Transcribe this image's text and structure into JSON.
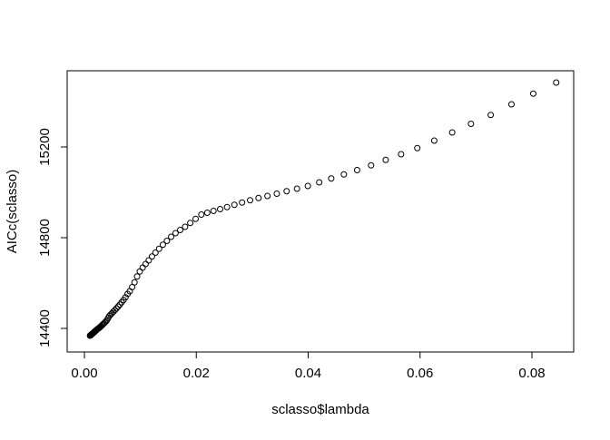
{
  "chart_data": {
    "type": "scatter",
    "x_label": "sclasso$lambda",
    "y_label": "AICc(sclasso)",
    "color": "#000000",
    "x": [
      0.001,
      0.00105,
      0.0011,
      0.00116,
      0.00122,
      0.00128,
      0.00135,
      0.00142,
      0.00149,
      0.00157,
      0.00165,
      0.00173,
      0.00182,
      0.00191,
      0.00201,
      0.00211,
      0.00222,
      0.00234,
      0.00246,
      0.00258,
      0.00271,
      0.00285,
      0.003,
      0.00315,
      0.00331,
      0.00348,
      0.00366,
      0.00385,
      0.00404,
      0.00425,
      0.00446,
      0.00469,
      0.00493,
      0.00518,
      0.00545,
      0.00573,
      0.00602,
      0.00633,
      0.00665,
      0.00699,
      0.00735,
      0.00772,
      0.00811,
      0.00853,
      0.00896,
      0.00942,
      0.0099,
      0.01041,
      0.01094,
      0.0115,
      0.01208,
      0.0127,
      0.01335,
      0.01403,
      0.01475,
      0.0155,
      0.01629,
      0.01712,
      0.018,
      0.01892,
      0.01988,
      0.0209,
      0.02196,
      0.02308,
      0.02426,
      0.0255,
      0.02681,
      0.02818,
      0.02962,
      0.03113,
      0.03272,
      0.03439,
      0.03615,
      0.038,
      0.03994,
      0.04198,
      0.04412,
      0.04638,
      0.04875,
      0.05124,
      0.05386,
      0.05661,
      0.0595,
      0.06254,
      0.06574,
      0.0691,
      0.07263,
      0.07634,
      0.08024,
      0.08434
    ],
    "values": [
      14368,
      14369,
      14370,
      14371,
      14372,
      14374,
      14375,
      14377,
      14378,
      14380,
      14381,
      14383,
      14385,
      14387,
      14390,
      14392,
      14394,
      14397,
      14399,
      14401,
      14404,
      14407,
      14410,
      14414,
      14418,
      14422,
      14426,
      14431,
      14437,
      14446,
      14455,
      14461,
      14467,
      14474,
      14481,
      14488,
      14496,
      14505,
      14515,
      14525,
      14537,
      14552,
      14564,
      14582,
      14603,
      14629,
      14651,
      14668,
      14684,
      14700,
      14717,
      14734,
      14751,
      14769,
      14786,
      14804,
      14820,
      14834,
      14848,
      14865,
      14883,
      14902,
      14910,
      14918,
      14926,
      14935,
      14945,
      14955,
      14965,
      14975,
      14984,
      14994,
      15005,
      15016,
      15028,
      15044,
      15061,
      15079,
      15098,
      15119,
      15143,
      15168,
      15195,
      15228,
      15264,
      15302,
      15341,
      15388,
      15435,
      15484
    ],
    "xlim": [
      -0.00308,
      0.08746
    ],
    "ylim": [
      14296,
      15536
    ],
    "xticks": [
      {
        "value": 0,
        "label": "0.00"
      },
      0.02,
      0.04,
      0.06,
      0.08
    ],
    "yticks": [
      14400,
      14800,
      15200
    ]
  }
}
